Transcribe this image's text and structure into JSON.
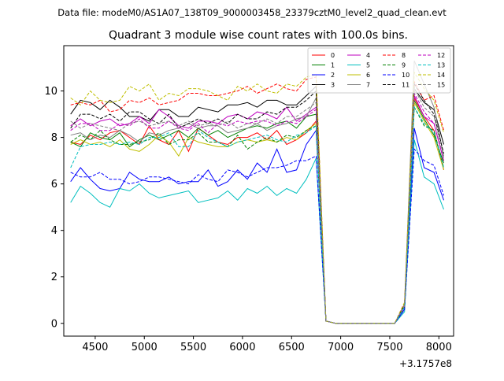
{
  "chart_data": {
    "type": "line",
    "suptitle": "Data file: modeM0/AS1A07_138T09_9000003458_23379cztM0_level2_quad_clean.evt",
    "title": "Quadrant 3 module wise count rates with 100.0s bins.",
    "xlabel": "",
    "ylabel": "",
    "x_offset_label": "+3.1757e8",
    "xlim": [
      4180,
      8150
    ],
    "ylim": [
      -0.55,
      11.95
    ],
    "xticks": [
      4500,
      5000,
      5500,
      6000,
      6500,
      7000,
      7500,
      8000
    ],
    "yticks": [
      0,
      2,
      4,
      6,
      8,
      10
    ],
    "grid": false,
    "legend": {
      "placement": "top-right",
      "columns": 4
    },
    "x": [
      4250,
      4350,
      4450,
      4550,
      4650,
      4750,
      4850,
      4950,
      5050,
      5150,
      5250,
      5350,
      5450,
      5550,
      5650,
      5750,
      5850,
      5950,
      6050,
      6150,
      6250,
      6350,
      6450,
      6550,
      6650,
      6750,
      6850,
      6950,
      7050,
      7150,
      7250,
      7350,
      7450,
      7550,
      7650,
      7750,
      7850,
      7950,
      8050
    ],
    "series": [
      {
        "name": "0",
        "color": "#ff0000",
        "dash": false,
        "values": [
          7.8,
          7.7,
          8.1,
          7.9,
          8.2,
          8.3,
          8.0,
          7.7,
          8.5,
          7.9,
          7.7,
          8.3,
          7.4,
          8.4,
          8.1,
          7.8,
          7.7,
          8.0,
          8.0,
          8.2,
          7.9,
          8.3,
          7.7,
          7.9,
          8.2,
          8.7,
          0.1,
          0.0,
          0.0,
          0.0,
          0.0,
          0.0,
          0.0,
          0.0,
          0.7,
          9.7,
          8.9,
          8.3,
          6.6
        ]
      },
      {
        "name": "1",
        "color": "#008000",
        "dash": false,
        "values": [
          7.8,
          7.6,
          8.2,
          8.0,
          7.9,
          8.2,
          7.6,
          7.9,
          8.1,
          7.9,
          8.1,
          8.3,
          8.0,
          8.4,
          8.1,
          8.3,
          8.0,
          8.2,
          8.4,
          8.5,
          8.4,
          8.6,
          8.7,
          8.4,
          8.9,
          9.0,
          0.1,
          0.0,
          0.0,
          0.0,
          0.0,
          0.0,
          0.0,
          0.0,
          0.7,
          9.6,
          8.8,
          8.1,
          6.9
        ]
      },
      {
        "name": "2",
        "color": "#0000ff",
        "dash": false,
        "values": [
          6.1,
          6.7,
          6.2,
          5.8,
          5.7,
          5.8,
          6.5,
          6.2,
          6.1,
          6.1,
          6.3,
          6.0,
          6.1,
          6.1,
          6.6,
          5.9,
          6.1,
          6.6,
          6.2,
          6.9,
          6.5,
          7.5,
          6.5,
          6.6,
          7.7,
          8.3,
          0.1,
          0.0,
          0.0,
          0.0,
          0.0,
          0.0,
          0.0,
          0.0,
          0.6,
          8.4,
          6.7,
          6.5,
          5.3
        ]
      },
      {
        "name": "3",
        "color": "#000000",
        "dash": false,
        "values": [
          9.0,
          9.6,
          9.5,
          9.2,
          9.6,
          9.3,
          8.9,
          8.9,
          8.7,
          9.2,
          9.2,
          8.9,
          8.9,
          9.3,
          9.2,
          9.1,
          9.4,
          9.4,
          9.5,
          9.3,
          9.6,
          9.6,
          9.4,
          9.4,
          9.8,
          10.2,
          0.1,
          0.0,
          0.0,
          0.0,
          0.0,
          0.0,
          0.0,
          0.0,
          0.8,
          10.1,
          9.5,
          9.2,
          7.7
        ]
      },
      {
        "name": "4",
        "color": "#bf00bf",
        "dash": false,
        "values": [
          8.5,
          8.8,
          8.5,
          8.7,
          8.8,
          8.5,
          8.6,
          8.9,
          8.6,
          9.2,
          8.9,
          8.5,
          8.4,
          8.7,
          8.7,
          8.6,
          8.9,
          9.0,
          8.8,
          9.1,
          9.0,
          8.8,
          9.3,
          8.7,
          9.0,
          9.3,
          0.1,
          0.0,
          0.0,
          0.0,
          0.0,
          0.0,
          0.0,
          0.0,
          0.7,
          9.8,
          8.9,
          8.6,
          7.0
        ]
      },
      {
        "name": "5",
        "color": "#00bfbf",
        "dash": false,
        "values": [
          5.2,
          5.9,
          5.6,
          5.2,
          5.0,
          5.8,
          5.7,
          6.0,
          5.6,
          5.4,
          5.5,
          5.6,
          5.7,
          5.2,
          5.3,
          5.4,
          5.7,
          5.3,
          5.8,
          5.6,
          5.9,
          5.5,
          5.8,
          5.6,
          6.2,
          7.1,
          0.1,
          0.0,
          0.0,
          0.0,
          0.0,
          0.0,
          0.0,
          0.0,
          0.5,
          7.9,
          6.3,
          6.0,
          4.9
        ]
      },
      {
        "name": "6",
        "color": "#bfbf00",
        "dash": false,
        "values": [
          7.7,
          7.9,
          7.7,
          7.8,
          7.6,
          7.9,
          7.5,
          7.4,
          7.7,
          8.1,
          7.8,
          7.2,
          8.0,
          7.8,
          7.7,
          7.6,
          7.6,
          7.8,
          7.9,
          7.8,
          7.9,
          7.8,
          8.0,
          7.9,
          8.3,
          8.6,
          0.1,
          0.0,
          0.0,
          0.0,
          0.0,
          0.0,
          0.0,
          0.0,
          0.7,
          9.5,
          8.7,
          8.0,
          6.6
        ]
      },
      {
        "name": "7",
        "color": "#808080",
        "dash": false,
        "values": [
          8.1,
          8.2,
          7.9,
          8.1,
          8.0,
          8.3,
          8.1,
          7.8,
          8.2,
          8.1,
          8.3,
          8.4,
          8.6,
          8.4,
          8.5,
          8.5,
          8.2,
          8.3,
          8.4,
          8.6,
          8.3,
          8.5,
          8.6,
          8.8,
          8.9,
          9.7,
          0.1,
          0.0,
          0.0,
          0.0,
          0.0,
          0.0,
          0.0,
          0.0,
          0.8,
          11.3,
          10.3,
          9.3,
          7.2
        ]
      },
      {
        "name": "8",
        "color": "#ff0000",
        "dash": true,
        "values": [
          9.4,
          9.5,
          9.4,
          9.6,
          9.1,
          9.2,
          9.6,
          9.5,
          9.7,
          9.4,
          9.5,
          9.6,
          9.9,
          9.9,
          9.8,
          9.8,
          9.9,
          10.0,
          10.2,
          9.9,
          10.1,
          10.3,
          10.1,
          10.0,
          10.5,
          10.6,
          0.1,
          0.0,
          0.0,
          0.0,
          0.0,
          0.0,
          0.0,
          0.0,
          0.9,
          10.4,
          9.6,
          9.8,
          8.3
        ]
      },
      {
        "name": "9",
        "color": "#008000",
        "dash": true,
        "values": [
          7.8,
          8.1,
          7.9,
          8.3,
          7.9,
          7.7,
          7.7,
          7.8,
          7.9,
          8.2,
          7.7,
          7.9,
          7.9,
          8.2,
          7.8,
          7.8,
          7.6,
          8.1,
          7.5,
          7.8,
          8.0,
          7.8,
          8.1,
          8.0,
          8.3,
          8.5,
          0.1,
          0.0,
          0.0,
          0.0,
          0.0,
          0.0,
          0.0,
          0.0,
          0.7,
          9.3,
          8.5,
          8.3,
          6.7
        ]
      },
      {
        "name": "10",
        "color": "#0000ff",
        "dash": true,
        "values": [
          6.5,
          6.3,
          6.3,
          6.5,
          6.2,
          6.2,
          6.0,
          6.1,
          6.3,
          6.3,
          6.2,
          6.1,
          6.0,
          6.4,
          6.2,
          6.1,
          6.6,
          6.5,
          6.3,
          6.5,
          6.7,
          6.7,
          6.8,
          7.0,
          7.0,
          7.2,
          0.1,
          0.0,
          0.0,
          0.0,
          0.0,
          0.0,
          0.0,
          0.0,
          0.6,
          7.5,
          7.0,
          6.8,
          5.5
        ]
      },
      {
        "name": "11",
        "color": "#000000",
        "dash": true,
        "values": [
          8.4,
          9.0,
          9.0,
          8.8,
          9.0,
          8.7,
          9.1,
          9.1,
          8.8,
          8.6,
          9.0,
          8.4,
          8.6,
          8.8,
          8.6,
          8.8,
          8.6,
          9.0,
          8.8,
          8.8,
          9.1,
          9.0,
          9.3,
          9.3,
          9.6,
          10.0,
          0.1,
          0.0,
          0.0,
          0.0,
          0.0,
          0.0,
          0.0,
          0.0,
          0.8,
          10.3,
          9.6,
          9.0,
          7.3
        ]
      },
      {
        "name": "12",
        "color": "#bf00bf",
        "dash": true,
        "values": [
          8.3,
          8.6,
          8.6,
          8.3,
          8.3,
          8.6,
          8.5,
          8.8,
          8.4,
          8.4,
          8.7,
          8.4,
          8.3,
          8.6,
          8.2,
          8.6,
          8.5,
          8.7,
          8.6,
          8.7,
          8.7,
          8.5,
          8.7,
          8.6,
          8.9,
          9.2,
          0.1,
          0.0,
          0.0,
          0.0,
          0.0,
          0.0,
          0.0,
          0.0,
          0.7,
          9.9,
          9.1,
          8.6,
          7.0
        ]
      },
      {
        "name": "13",
        "color": "#00bfbf",
        "dash": true,
        "values": [
          6.7,
          7.6,
          7.7,
          7.7,
          7.8,
          7.7,
          7.8,
          7.7,
          8.0,
          8.0,
          8.2,
          7.6,
          7.6,
          8.3,
          8.0,
          7.8,
          7.6,
          7.8,
          7.9,
          8.0,
          8.1,
          7.9,
          7.8,
          8.1,
          8.2,
          8.5,
          0.1,
          0.0,
          0.0,
          0.0,
          0.0,
          0.0,
          0.0,
          0.0,
          0.7,
          9.3,
          8.6,
          8.2,
          6.7
        ]
      },
      {
        "name": "14",
        "color": "#bfbf00",
        "dash": true,
        "values": [
          9.7,
          9.4,
          10.0,
          9.6,
          9.5,
          9.6,
          10.2,
          10.0,
          10.3,
          9.6,
          9.9,
          9.8,
          10.1,
          10.1,
          10.0,
          9.8,
          9.6,
          10.2,
          10.0,
          10.3,
          10.0,
          9.9,
          10.3,
          10.2,
          10.6,
          10.7,
          0.1,
          0.0,
          0.0,
          0.0,
          0.0,
          0.0,
          0.0,
          0.0,
          0.9,
          10.8,
          10.1,
          9.6,
          8.2
        ]
      },
      {
        "name": "15",
        "color": "#808080",
        "dash": true,
        "values": [
          8.7,
          8.4,
          8.6,
          8.5,
          8.4,
          8.3,
          8.6,
          8.7,
          8.5,
          8.6,
          8.7,
          8.5,
          8.7,
          8.5,
          8.6,
          8.5,
          8.7,
          8.4,
          8.6,
          8.6,
          8.8,
          8.6,
          8.9,
          8.9,
          9.2,
          9.5,
          0.1,
          0.0,
          0.0,
          0.0,
          0.0,
          0.0,
          0.0,
          0.0,
          0.8,
          10.1,
          9.3,
          8.9,
          7.1
        ]
      }
    ]
  }
}
